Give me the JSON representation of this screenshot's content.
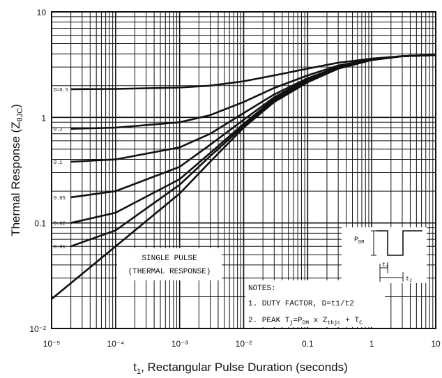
{
  "chart_data": {
    "type": "line",
    "xlabel": "t1, Rectangular Pulse Duration (seconds)",
    "ylabel": "Thermal Response (ZθJC)",
    "x_scale": "log",
    "y_scale": "log",
    "xlim": [
      1e-05,
      10
    ],
    "ylim": [
      0.01,
      10
    ],
    "grid": true,
    "x_ticks": [
      {
        "value": 1e-05,
        "label": "10⁻⁵"
      },
      {
        "value": 0.0001,
        "label": "10⁻⁴"
      },
      {
        "value": 0.001,
        "label": "10⁻³"
      },
      {
        "value": 0.01,
        "label": "10⁻²"
      },
      {
        "value": 0.1,
        "label": "0.1"
      },
      {
        "value": 1,
        "label": "1"
      },
      {
        "value": 10,
        "label": "10"
      }
    ],
    "y_ticks": [
      {
        "value": 0.01,
        "label": "10⁻²"
      },
      {
        "value": 0.1,
        "label": "0.1"
      },
      {
        "value": 1,
        "label": "1"
      },
      {
        "value": 10,
        "label": "10"
      }
    ],
    "series": [
      {
        "name": "D=0.5",
        "x": [
          2e-05,
          0.0001,
          0.001,
          0.003,
          0.01,
          0.03,
          0.1,
          0.3,
          1,
          3,
          10
        ],
        "y": [
          1.85,
          1.86,
          1.92,
          2.0,
          2.2,
          2.5,
          2.9,
          3.3,
          3.6,
          3.8,
          3.9
        ]
      },
      {
        "name": "0.2",
        "x": [
          2e-05,
          0.0001,
          0.001,
          0.003,
          0.01,
          0.03,
          0.1,
          0.3,
          1,
          3,
          10
        ],
        "y": [
          0.78,
          0.8,
          0.9,
          1.05,
          1.4,
          1.9,
          2.5,
          3.1,
          3.55,
          3.8,
          3.9
        ]
      },
      {
        "name": "0.1",
        "x": [
          2e-05,
          0.0001,
          0.001,
          0.003,
          0.01,
          0.03,
          0.1,
          0.3,
          1,
          3,
          10
        ],
        "y": [
          0.38,
          0.4,
          0.52,
          0.7,
          1.1,
          1.65,
          2.35,
          3.0,
          3.5,
          3.8,
          3.9
        ]
      },
      {
        "name": "0.05",
        "x": [
          2e-05,
          0.0001,
          0.001,
          0.003,
          0.01,
          0.03,
          0.1,
          0.3,
          1,
          3,
          10
        ],
        "y": [
          0.175,
          0.2,
          0.34,
          0.55,
          0.95,
          1.55,
          2.3,
          2.95,
          3.5,
          3.8,
          3.9
        ]
      },
      {
        "name": "0.02",
        "x": [
          2e-05,
          0.0001,
          0.001,
          0.003,
          0.01,
          0.03,
          0.1,
          0.3,
          1,
          3,
          10
        ],
        "y": [
          0.1,
          0.125,
          0.26,
          0.46,
          0.87,
          1.5,
          2.25,
          2.95,
          3.5,
          3.8,
          3.9
        ]
      },
      {
        "name": "0.01",
        "x": [
          2e-05,
          0.0001,
          0.001,
          0.003,
          0.01,
          0.03,
          0.1,
          0.3,
          1,
          3,
          10
        ],
        "y": [
          0.06,
          0.085,
          0.23,
          0.43,
          0.83,
          1.45,
          2.2,
          2.9,
          3.5,
          3.8,
          3.9
        ]
      },
      {
        "name": "SINGLE PULSE",
        "x": [
          1e-05,
          0.0001,
          0.001,
          0.003,
          0.01,
          0.03,
          0.1,
          0.3,
          1,
          3,
          10
        ],
        "y": [
          0.019,
          0.06,
          0.19,
          0.38,
          0.8,
          1.4,
          2.15,
          2.9,
          3.5,
          3.8,
          3.9
        ]
      }
    ],
    "annotations": {
      "single_pulse_line1": "SINGLE PULSE",
      "single_pulse_line2": "(THERMAL RESPONSE)",
      "notes_title": "NOTES:",
      "note1": "1. DUTY FACTOR, D=t1/t2",
      "note2_prefix": "2. PEAK T",
      "note2_sub_j": "j",
      "note2_eq": "=P",
      "note2_sub_dm": "DM",
      "note2_x": " x Z",
      "note2_sub_thjc": "thjc",
      "note2_plus": " + T",
      "note2_sub_c": "C",
      "inset_pdm": "P",
      "inset_pdm_sub": "DM",
      "inset_t1": "t",
      "inset_t1_sub": "1",
      "inset_t2": "t",
      "inset_t2_sub": "2"
    }
  }
}
